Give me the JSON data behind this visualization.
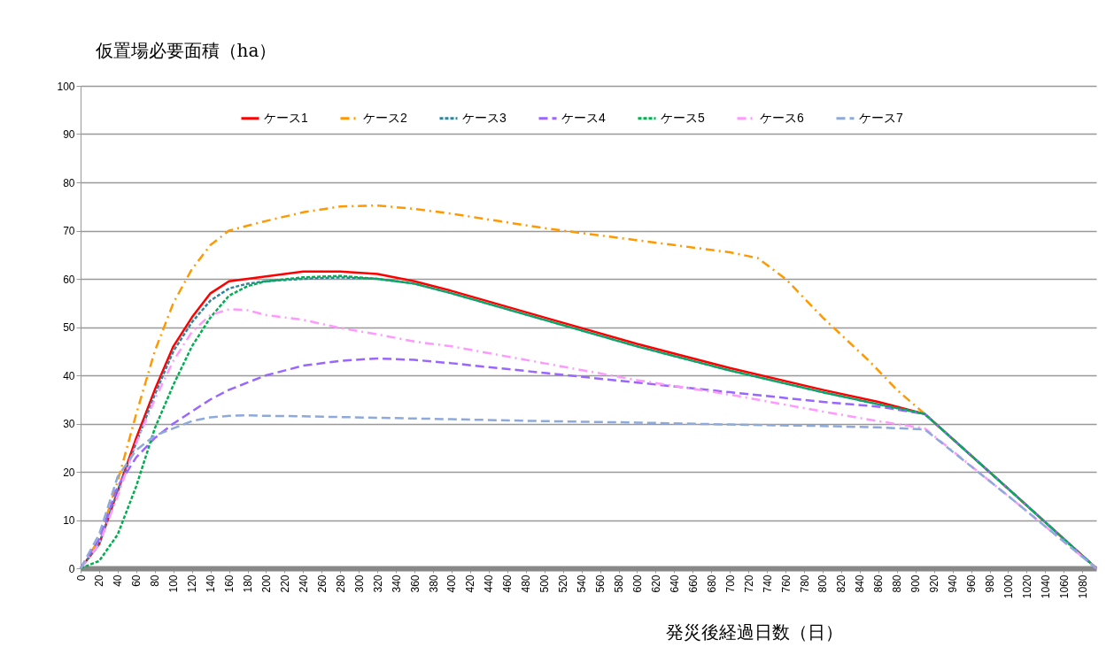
{
  "chart_data": {
    "type": "line",
    "ylabel": "仮置場必要面積（ha）",
    "xlabel": "発災後経過日数（日）",
    "xlim": [
      0,
      1095
    ],
    "xticks": [
      0,
      20,
      40,
      60,
      80,
      100,
      120,
      140,
      160,
      180,
      200,
      220,
      240,
      260,
      280,
      300,
      320,
      340,
      360,
      380,
      400,
      420,
      440,
      460,
      480,
      500,
      520,
      540,
      560,
      580,
      600,
      620,
      640,
      660,
      680,
      700,
      720,
      740,
      760,
      780,
      800,
      820,
      840,
      860,
      880,
      900,
      920,
      940,
      960,
      980,
      1000,
      1020,
      1040,
      1060,
      1080
    ],
    "ylim": [
      0,
      100
    ],
    "yticks": [
      0,
      10,
      20,
      30,
      40,
      50,
      60,
      70,
      80,
      90,
      100
    ],
    "grid": "y",
    "legend": "top",
    "series": [
      {
        "name": "ケース1",
        "color": "#ff0000",
        "line_style": "solid",
        "x": [
          0,
          20,
          40,
          60,
          80,
          100,
          120,
          140,
          160,
          180,
          200,
          240,
          280,
          320,
          360,
          400,
          500,
          600,
          700,
          800,
          860,
          910,
          1000,
          1095
        ],
        "values": [
          0,
          5,
          16,
          27,
          37,
          46,
          52,
          57,
          59.5,
          60,
          60.5,
          61.5,
          61.5,
          61,
          59.5,
          57.5,
          52,
          46.5,
          41.5,
          37,
          34.5,
          32,
          16.5,
          0
        ]
      },
      {
        "name": "ケース2",
        "color": "#ff9900",
        "line_style": "dashdot",
        "x": [
          0,
          20,
          40,
          60,
          80,
          100,
          120,
          140,
          160,
          180,
          200,
          240,
          280,
          320,
          360,
          400,
          500,
          600,
          700,
          730,
          760,
          800,
          850,
          880,
          910,
          1000,
          1095
        ],
        "values": [
          0,
          6,
          18,
          32,
          45,
          55,
          62,
          67,
          70,
          71,
          72,
          73.8,
          75,
          75.2,
          74.5,
          73.5,
          70.5,
          68,
          65.5,
          64.3,
          60,
          52,
          43,
          37,
          32,
          16.5,
          0
        ]
      },
      {
        "name": "ケース3",
        "color": "#31849b",
        "line_style": "dotted",
        "x": [
          0,
          20,
          40,
          60,
          80,
          100,
          120,
          140,
          160,
          180,
          200,
          240,
          280,
          320,
          360,
          400,
          500,
          600,
          700,
          800,
          860,
          910,
          1000,
          1095
        ],
        "values": [
          0,
          5,
          16,
          26,
          36,
          45,
          51,
          55.5,
          58,
          59,
          59.5,
          60,
          60.3,
          60,
          59,
          57,
          51.5,
          46,
          41,
          36.5,
          34,
          32,
          16.5,
          0
        ]
      },
      {
        "name": "ケース4",
        "color": "#9966ff",
        "line_style": "dashed",
        "x": [
          0,
          20,
          40,
          60,
          80,
          100,
          120,
          140,
          160,
          180,
          200,
          240,
          280,
          320,
          360,
          400,
          500,
          600,
          700,
          800,
          860,
          910,
          1000,
          1095
        ],
        "values": [
          0,
          6,
          17,
          23,
          27,
          30,
          32.5,
          35,
          37,
          38.5,
          40,
          42,
          43,
          43.5,
          43.2,
          42.5,
          40.5,
          38.5,
          36.5,
          34.5,
          33.5,
          32,
          16.5,
          0
        ]
      },
      {
        "name": "ケース5",
        "color": "#00b050",
        "line_style": "dotted",
        "x": [
          0,
          20,
          40,
          60,
          80,
          100,
          120,
          140,
          160,
          180,
          200,
          240,
          280,
          320,
          360,
          400,
          500,
          600,
          700,
          800,
          860,
          910,
          1000,
          1095
        ],
        "values": [
          0,
          1.5,
          7,
          17,
          29,
          38,
          46,
          52,
          56.5,
          58.5,
          59.5,
          60.3,
          60.6,
          60,
          59,
          57,
          51.5,
          46,
          41,
          36.5,
          34,
          32,
          16.5,
          0
        ]
      },
      {
        "name": "ケース6",
        "color": "#ff99ff",
        "line_style": "dashdot",
        "x": [
          0,
          20,
          40,
          60,
          80,
          100,
          120,
          140,
          160,
          180,
          200,
          240,
          280,
          320,
          360,
          400,
          500,
          600,
          700,
          800,
          860,
          910,
          1000,
          1095
        ],
        "values": [
          0,
          5,
          15,
          26,
          35,
          43,
          49,
          52.5,
          53.7,
          53.5,
          52.5,
          51.5,
          49.8,
          48.5,
          47,
          46,
          42.5,
          39,
          36,
          32.5,
          30.5,
          29,
          15,
          0
        ]
      },
      {
        "name": "ケース7",
        "color": "#8ea9db",
        "line_style": "dashed",
        "x": [
          0,
          20,
          40,
          60,
          80,
          100,
          120,
          140,
          160,
          180,
          200,
          240,
          320,
          400,
          500,
          600,
          700,
          800,
          860,
          910,
          1000,
          1095
        ],
        "values": [
          0,
          7,
          19,
          24.5,
          27.5,
          29,
          30.5,
          31.3,
          31.6,
          31.7,
          31.6,
          31.5,
          31.2,
          30.9,
          30.5,
          30.2,
          29.8,
          29.5,
          29.2,
          28.8,
          15,
          0
        ]
      }
    ]
  }
}
